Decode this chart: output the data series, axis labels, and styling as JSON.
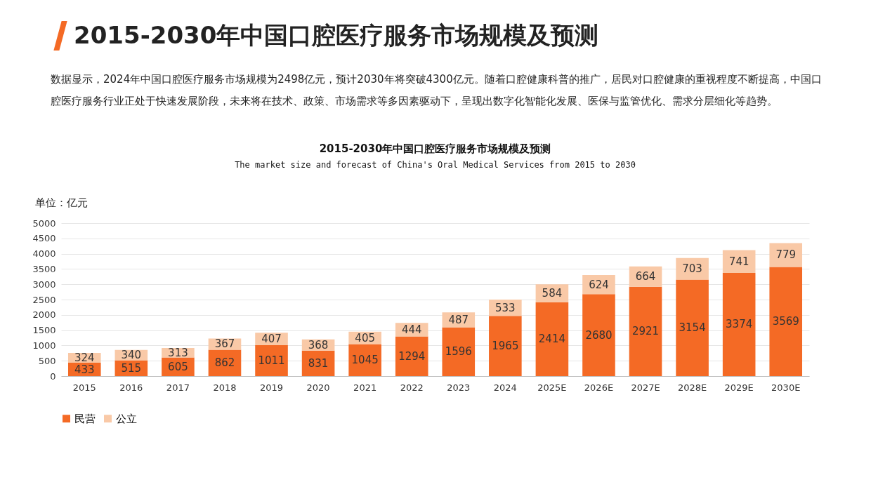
{
  "chart_data": {
    "type": "bar",
    "title": "2015-2030年中国口腔医疗服务市场规模及预测",
    "subtitle": "The market size and forecast of China's Oral Medical Services from 2015 to 2030",
    "ylabel": "单位：亿元",
    "annotations": [
      "2015-2030年中国口腔医疗服务市场规模及预测",
      "数据显示，2024年中国口腔医疗服务市场规模为2498亿元，预计2030年将突破4300亿元。随着口腔健康科普的推广，居民对口腔健康的重视程度不断提高，中国口腔医疗服务行业正处于快速发展阶段，未来将在技术、政策、市场需求等多因素驱动下，呈现出数字化智能化发展、医保与监管优化、需求分层细化等趋势。"
    ],
    "categories": [
      "2015",
      "2016",
      "2017",
      "2018",
      "2019",
      "2020",
      "2021",
      "2022",
      "2023",
      "2024",
      "2025E",
      "2026E",
      "2027E",
      "2028E",
      "2029E",
      "2030E"
    ],
    "series": [
      {
        "name": "民营",
        "color": "#f46a25",
        "values": [
          433,
          515,
          605,
          862,
          1011,
          831,
          1045,
          1294,
          1596,
          1965,
          2414,
          2680,
          2921,
          3154,
          3374,
          3569
        ]
      },
      {
        "name": "公立",
        "color": "#f9c9a7",
        "values": [
          324,
          340,
          313,
          367,
          407,
          368,
          405,
          444,
          487,
          533,
          584,
          624,
          664,
          703,
          741,
          779
        ]
      }
    ],
    "stacked": true,
    "data_labels": true,
    "ylim": [
      0,
      5000
    ],
    "yticks": [
      0,
      500,
      1000,
      1500,
      2000,
      2500,
      3000,
      3500,
      4000,
      4500,
      5000
    ],
    "grid": "y",
    "legend": "bottom"
  }
}
